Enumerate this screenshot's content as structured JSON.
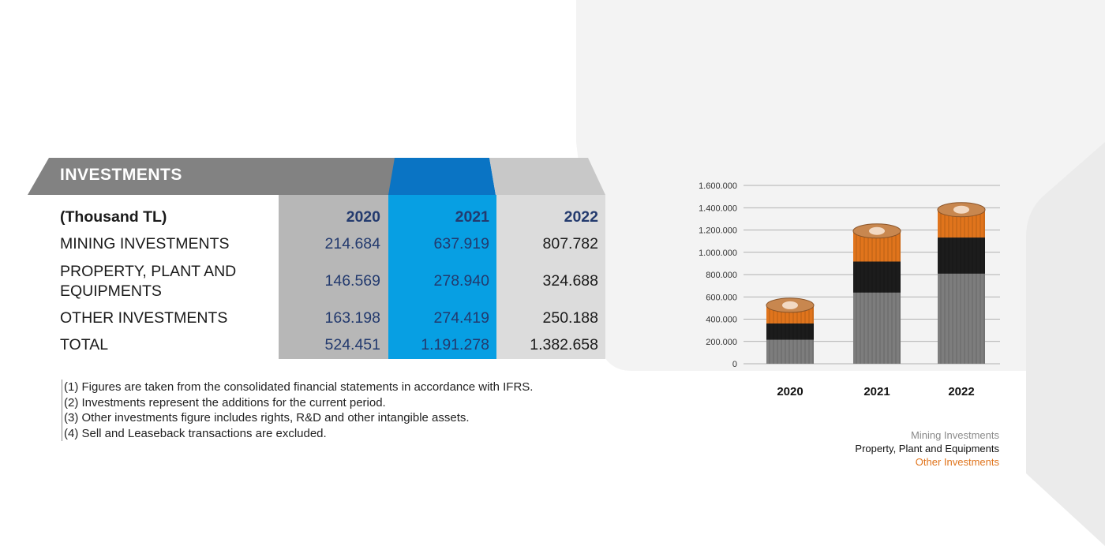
{
  "section_title": "INVESTMENTS",
  "table": {
    "unit_label": "(Thousand TL)",
    "years": [
      "2020",
      "2021",
      "2022"
    ],
    "rows": [
      {
        "label_line1": "MINING INVESTMENTS",
        "label_line2": "",
        "values": [
          "214.684",
          "637.919",
          "807.782"
        ]
      },
      {
        "label_line1": "PROPERTY, PLANT AND",
        "label_line2": "EQUIPMENTS",
        "values": [
          "146.569",
          "278.940",
          "324.688"
        ]
      },
      {
        "label_line1": "OTHER INVESTMENTS",
        "label_line2": "",
        "values": [
          "163.198",
          "274.419",
          "250.188"
        ]
      },
      {
        "label_line1": "TOTAL",
        "label_line2": "",
        "values": [
          "524.451",
          "1.191.278",
          "1.382.658"
        ]
      }
    ]
  },
  "notes": [
    "(1) Figures are taken from the consolidated financial statements in accordance with IFRS.",
    "(2) Investments represent the additions for the current period.",
    "(3) Other investments figure includes rights, R&D and other intangible assets.",
    "(4) Sell and Leaseback transactions are excluded."
  ],
  "legend": {
    "mining": "Mining Investments",
    "ppe": "Property, Plant and Equipments",
    "other": "Other Investments"
  },
  "colors": {
    "mining": "#7d7d7d",
    "ppe": "#1c1c1c",
    "other": "#e0741c",
    "highlight": "#079fe3"
  },
  "chart_data": {
    "type": "bar",
    "stacked": true,
    "categories": [
      "2020",
      "2021",
      "2022"
    ],
    "series": [
      {
        "name": "Mining Investments",
        "values": [
          214684,
          637919,
          807782
        ]
      },
      {
        "name": "Property, Plant and Equipments",
        "values": [
          146569,
          278940,
          324688
        ]
      },
      {
        "name": "Other Investments",
        "values": [
          163198,
          274419,
          250188
        ]
      }
    ],
    "ylim": [
      0,
      1600000
    ],
    "yticks": [
      0,
      200000,
      400000,
      600000,
      800000,
      1000000,
      1200000,
      1400000,
      1600000
    ],
    "ytick_labels": [
      "0",
      "200.000",
      "400.000",
      "600.000",
      "800.000",
      "1.000.000",
      "1.200.000",
      "1.400.000",
      "1.600.000"
    ],
    "grid": true,
    "legend_position": "bottom-right"
  }
}
